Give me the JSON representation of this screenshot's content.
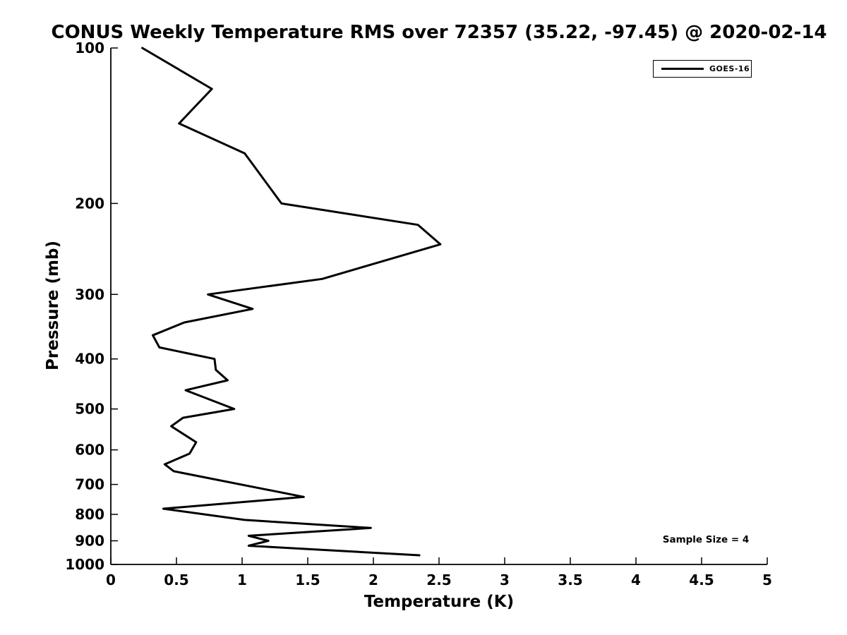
{
  "chart_data": {
    "type": "line",
    "title": "CONUS Weekly Temperature RMS over 72357 (35.22, -97.45) @ 2020-02-14",
    "xlabel": "Temperature (K)",
    "ylabel": "Pressure (mb)",
    "annotation": "Sample Size = 4",
    "sample_size": 4,
    "line_color": "#000000",
    "background_color": "#ffffff",
    "legend_position": "top-right",
    "grid": false,
    "x_axis": {
      "min": 0,
      "max": 5,
      "ticks": [
        0,
        0.5,
        1,
        1.5,
        2,
        2.5,
        3,
        3.5,
        4,
        4.5,
        5
      ]
    },
    "y_axis": {
      "scale": "log",
      "inverted": true,
      "min": 100,
      "max": 1000,
      "ticks": [
        100,
        200,
        300,
        400,
        500,
        600,
        700,
        800,
        900,
        1000
      ]
    },
    "series": [
      {
        "name": "GOES-16",
        "color": "#000000",
        "line_width": 3,
        "points": [
          {
            "temperature_rms": 0.24,
            "pressure_mb": 100
          },
          {
            "temperature_rms": 0.77,
            "pressure_mb": 120
          },
          {
            "temperature_rms": 0.52,
            "pressure_mb": 140
          },
          {
            "temperature_rms": 1.02,
            "pressure_mb": 160
          },
          {
            "temperature_rms": 1.3,
            "pressure_mb": 200
          },
          {
            "temperature_rms": 2.34,
            "pressure_mb": 220
          },
          {
            "temperature_rms": 2.51,
            "pressure_mb": 240
          },
          {
            "temperature_rms": 1.61,
            "pressure_mb": 280
          },
          {
            "temperature_rms": 0.74,
            "pressure_mb": 300
          },
          {
            "temperature_rms": 1.08,
            "pressure_mb": 320
          },
          {
            "temperature_rms": 0.56,
            "pressure_mb": 340
          },
          {
            "temperature_rms": 0.32,
            "pressure_mb": 360
          },
          {
            "temperature_rms": 0.37,
            "pressure_mb": 380
          },
          {
            "temperature_rms": 0.79,
            "pressure_mb": 400
          },
          {
            "temperature_rms": 0.8,
            "pressure_mb": 420
          },
          {
            "temperature_rms": 0.89,
            "pressure_mb": 440
          },
          {
            "temperature_rms": 0.57,
            "pressure_mb": 460
          },
          {
            "temperature_rms": 0.94,
            "pressure_mb": 500
          },
          {
            "temperature_rms": 0.55,
            "pressure_mb": 520
          },
          {
            "temperature_rms": 0.46,
            "pressure_mb": 540
          },
          {
            "temperature_rms": 0.65,
            "pressure_mb": 580
          },
          {
            "temperature_rms": 0.6,
            "pressure_mb": 610
          },
          {
            "temperature_rms": 0.41,
            "pressure_mb": 640
          },
          {
            "temperature_rms": 0.48,
            "pressure_mb": 660
          },
          {
            "temperature_rms": 1.47,
            "pressure_mb": 740
          },
          {
            "temperature_rms": 0.4,
            "pressure_mb": 780
          },
          {
            "temperature_rms": 1.02,
            "pressure_mb": 820
          },
          {
            "temperature_rms": 1.98,
            "pressure_mb": 850
          },
          {
            "temperature_rms": 1.05,
            "pressure_mb": 880
          },
          {
            "temperature_rms": 1.2,
            "pressure_mb": 900
          },
          {
            "temperature_rms": 1.05,
            "pressure_mb": 920
          },
          {
            "temperature_rms": 2.35,
            "pressure_mb": 960
          }
        ]
      }
    ]
  }
}
